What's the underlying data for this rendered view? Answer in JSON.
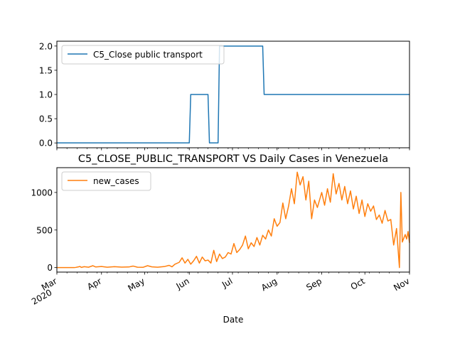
{
  "chart_data": [
    {
      "type": "line",
      "title": "",
      "xlabel": "",
      "ylabel": "",
      "x_range": [
        "2020-03-01",
        "2020-11-01"
      ],
      "ylim": [
        -0.1,
        2.1
      ],
      "yticks": [
        "0.0",
        "0.5",
        "1.0",
        "1.5",
        "2.0"
      ],
      "legend_position": "top-left",
      "grid": false,
      "series": [
        {
          "name": "C5_Close public transport",
          "color": "#1f77b4",
          "points": [
            [
              "2020-03-01",
              0
            ],
            [
              "2020-06-01",
              0
            ],
            [
              "2020-06-02",
              1
            ],
            [
              "2020-06-14",
              1
            ],
            [
              "2020-06-15",
              0
            ],
            [
              "2020-06-21",
              0
            ],
            [
              "2020-06-22",
              2
            ],
            [
              "2020-07-22",
              2
            ],
            [
              "2020-07-23",
              1
            ],
            [
              "2020-11-01",
              1
            ]
          ]
        }
      ]
    },
    {
      "type": "line",
      "title": "C5_CLOSE_PUBLIC_TRANSPORT VS Daily Cases in Venezuela",
      "xlabel": "Date",
      "ylabel": "",
      "x_range": [
        "2020-03-01",
        "2020-11-01"
      ],
      "ylim": [
        -60,
        1330
      ],
      "yticks": [
        "0",
        "500",
        "1000"
      ],
      "x_major_ticks": [
        {
          "date": "2020-03-01",
          "label": "Mar",
          "sublabel": "2020"
        },
        {
          "date": "2020-04-01",
          "label": "Apr",
          "sublabel": ""
        },
        {
          "date": "2020-05-01",
          "label": "May",
          "sublabel": ""
        },
        {
          "date": "2020-06-01",
          "label": "Jun",
          "sublabel": ""
        },
        {
          "date": "2020-07-01",
          "label": "Jul",
          "sublabel": ""
        },
        {
          "date": "2020-08-01",
          "label": "Aug",
          "sublabel": ""
        },
        {
          "date": "2020-09-01",
          "label": "Sep",
          "sublabel": ""
        },
        {
          "date": "2020-10-01",
          "label": "Oct",
          "sublabel": ""
        },
        {
          "date": "2020-11-01",
          "label": "Nov",
          "sublabel": ""
        }
      ],
      "legend_position": "top-left",
      "grid": false,
      "series": [
        {
          "name": "new_cases",
          "color": "#ff7f0e",
          "points": [
            [
              "2020-03-01",
              0
            ],
            [
              "2020-03-13",
              0
            ],
            [
              "2020-03-14",
              2
            ],
            [
              "2020-03-16",
              10
            ],
            [
              "2020-03-17",
              15
            ],
            [
              "2020-03-18",
              3
            ],
            [
              "2020-03-20",
              12
            ],
            [
              "2020-03-23",
              5
            ],
            [
              "2020-03-26",
              25
            ],
            [
              "2020-03-28",
              8
            ],
            [
              "2020-04-01",
              14
            ],
            [
              "2020-04-05",
              5
            ],
            [
              "2020-04-10",
              12
            ],
            [
              "2020-04-15",
              6
            ],
            [
              "2020-04-20",
              8
            ],
            [
              "2020-04-23",
              20
            ],
            [
              "2020-04-26",
              5
            ],
            [
              "2020-04-30",
              4
            ],
            [
              "2020-05-03",
              25
            ],
            [
              "2020-05-06",
              10
            ],
            [
              "2020-05-10",
              5
            ],
            [
              "2020-05-15",
              15
            ],
            [
              "2020-05-18",
              30
            ],
            [
              "2020-05-20",
              10
            ],
            [
              "2020-05-22",
              45
            ],
            [
              "2020-05-25",
              70
            ],
            [
              "2020-05-27",
              130
            ],
            [
              "2020-05-29",
              60
            ],
            [
              "2020-05-31",
              110
            ],
            [
              "2020-06-02",
              45
            ],
            [
              "2020-06-04",
              90
            ],
            [
              "2020-06-06",
              150
            ],
            [
              "2020-06-08",
              60
            ],
            [
              "2020-06-10",
              140
            ],
            [
              "2020-06-12",
              90
            ],
            [
              "2020-06-14",
              100
            ],
            [
              "2020-06-16",
              60
            ],
            [
              "2020-06-18",
              230
            ],
            [
              "2020-06-20",
              80
            ],
            [
              "2020-06-22",
              180
            ],
            [
              "2020-06-24",
              120
            ],
            [
              "2020-06-26",
              140
            ],
            [
              "2020-06-28",
              200
            ],
            [
              "2020-06-30",
              180
            ],
            [
              "2020-07-02",
              320
            ],
            [
              "2020-07-04",
              200
            ],
            [
              "2020-07-06",
              240
            ],
            [
              "2020-07-08",
              300
            ],
            [
              "2020-07-10",
              420
            ],
            [
              "2020-07-12",
              250
            ],
            [
              "2020-07-14",
              330
            ],
            [
              "2020-07-16",
              280
            ],
            [
              "2020-07-18",
              400
            ],
            [
              "2020-07-20",
              300
            ],
            [
              "2020-07-22",
              430
            ],
            [
              "2020-07-24",
              380
            ],
            [
              "2020-07-26",
              500
            ],
            [
              "2020-07-28",
              420
            ],
            [
              "2020-07-30",
              650
            ],
            [
              "2020-08-01",
              550
            ],
            [
              "2020-08-03",
              600
            ],
            [
              "2020-08-05",
              860
            ],
            [
              "2020-08-07",
              650
            ],
            [
              "2020-08-09",
              820
            ],
            [
              "2020-08-11",
              1050
            ],
            [
              "2020-08-13",
              850
            ],
            [
              "2020-08-15",
              1270
            ],
            [
              "2020-08-17",
              1100
            ],
            [
              "2020-08-19",
              1210
            ],
            [
              "2020-08-21",
              900
            ],
            [
              "2020-08-23",
              1150
            ],
            [
              "2020-08-25",
              650
            ],
            [
              "2020-08-27",
              900
            ],
            [
              "2020-08-29",
              800
            ],
            [
              "2020-09-01",
              1000
            ],
            [
              "2020-09-03",
              830
            ],
            [
              "2020-09-05",
              1050
            ],
            [
              "2020-09-07",
              870
            ],
            [
              "2020-09-09",
              1250
            ],
            [
              "2020-09-11",
              980
            ],
            [
              "2020-09-13",
              1120
            ],
            [
              "2020-09-15",
              900
            ],
            [
              "2020-09-17",
              1080
            ],
            [
              "2020-09-19",
              850
            ],
            [
              "2020-09-21",
              1020
            ],
            [
              "2020-09-23",
              780
            ],
            [
              "2020-09-25",
              950
            ],
            [
              "2020-09-27",
              720
            ],
            [
              "2020-09-29",
              900
            ],
            [
              "2020-10-01",
              680
            ],
            [
              "2020-10-03",
              850
            ],
            [
              "2020-10-05",
              750
            ],
            [
              "2020-10-07",
              820
            ],
            [
              "2020-10-09",
              640
            ],
            [
              "2020-10-11",
              700
            ],
            [
              "2020-10-13",
              590
            ],
            [
              "2020-10-15",
              760
            ],
            [
              "2020-10-17",
              620
            ],
            [
              "2020-10-19",
              640
            ],
            [
              "2020-10-21",
              300
            ],
            [
              "2020-10-23",
              520
            ],
            [
              "2020-10-25",
              0
            ],
            [
              "2020-10-26",
              1000
            ],
            [
              "2020-10-27",
              340
            ],
            [
              "2020-10-29",
              440
            ],
            [
              "2020-10-30",
              380
            ],
            [
              "2020-10-31",
              480
            ],
            [
              "2020-11-01",
              330
            ]
          ]
        }
      ]
    }
  ]
}
